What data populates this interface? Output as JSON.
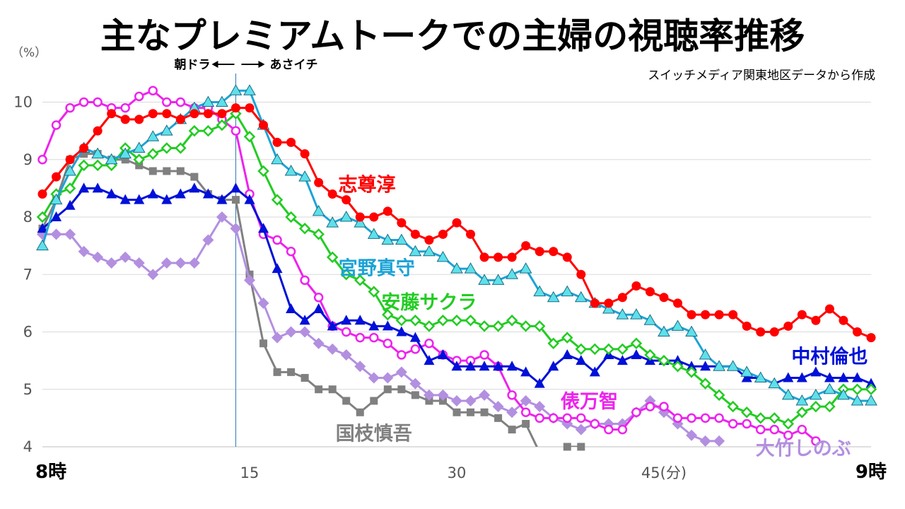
{
  "header": {
    "title": "主なプレミアムトークでの主婦の視聴率推移",
    "source": "スイッチメディア関東地区データから作成"
  },
  "chart_data": {
    "type": "line",
    "title": "主なプレミアムトークでの主婦の視聴率推移",
    "ylabel": "（%）",
    "xlabel": "",
    "xlim": [
      0,
      60
    ],
    "ylim": [
      4,
      10.4
    ],
    "yticks": [
      4,
      5,
      6,
      7,
      8,
      9,
      10
    ],
    "xticks": [
      {
        "x": 0,
        "label": "8時"
      },
      {
        "x": 15,
        "label": "15"
      },
      {
        "x": 30,
        "label": "30"
      },
      {
        "x": 45,
        "label": "45(分)"
      },
      {
        "x": 60,
        "label": "9時"
      }
    ],
    "marker": {
      "x": 14,
      "label_left": "朝ドラ",
      "label_right": "あさイチ",
      "color": "#2e75b6"
    },
    "grid": "horizontal",
    "series": [
      {
        "name": "志尊淳",
        "color": "#ff0000",
        "marker": "circle-filled",
        "label_pos": [
          23.5,
          8.45
        ],
        "values": [
          8.4,
          8.7,
          9.0,
          9.2,
          9.5,
          9.8,
          9.7,
          9.7,
          9.8,
          9.8,
          9.7,
          9.8,
          9.8,
          9.8,
          9.9,
          9.9,
          9.6,
          9.3,
          9.3,
          9.1,
          8.6,
          8.4,
          8.3,
          8.0,
          8.0,
          8.1,
          7.9,
          7.7,
          7.6,
          7.7,
          7.9,
          7.7,
          7.3,
          7.3,
          7.3,
          7.5,
          7.4,
          7.4,
          7.3,
          7.0,
          6.5,
          6.5,
          6.6,
          6.8,
          6.7,
          6.6,
          6.5,
          6.3,
          6.3,
          6.3,
          6.3,
          6.1,
          6.0,
          6.0,
          6.1,
          6.3,
          6.2,
          6.4,
          6.2,
          6.0,
          5.9
        ]
      },
      {
        "name": "宮野真守",
        "color": "#1ca3d6",
        "marker": "triangle",
        "label_pos": [
          24.2,
          7.0
        ],
        "values": [
          7.5,
          8.3,
          8.8,
          9.2,
          9.1,
          9.0,
          9.1,
          9.2,
          9.4,
          9.5,
          9.7,
          9.9,
          10.0,
          10.0,
          10.2,
          10.2,
          9.6,
          9.0,
          8.8,
          8.7,
          8.1,
          7.9,
          8.0,
          7.9,
          7.7,
          7.6,
          7.6,
          7.4,
          7.4,
          7.3,
          7.1,
          7.1,
          6.9,
          6.9,
          7.0,
          7.1,
          6.7,
          6.6,
          6.7,
          6.6,
          6.5,
          6.4,
          6.3,
          6.3,
          6.2,
          6.0,
          6.1,
          6.0,
          5.6,
          5.4,
          5.4,
          5.3,
          5.2,
          5.1,
          4.9,
          4.8,
          4.9,
          5.0,
          4.9,
          4.8,
          4.8
        ]
      },
      {
        "name": "安藤サクラ",
        "color": "#22cc22",
        "marker": "diamond-open",
        "label_pos": [
          28.0,
          6.4
        ],
        "values": [
          8.0,
          8.4,
          8.5,
          8.9,
          8.9,
          8.9,
          9.2,
          9.0,
          9.1,
          9.2,
          9.2,
          9.5,
          9.5,
          9.6,
          9.8,
          9.4,
          8.8,
          8.3,
          8.0,
          7.8,
          7.7,
          7.3,
          7.0,
          6.9,
          6.7,
          6.3,
          6.2,
          6.2,
          6.1,
          6.2,
          6.2,
          6.2,
          6.1,
          6.1,
          6.2,
          6.1,
          6.1,
          5.8,
          5.9,
          5.7,
          5.7,
          5.7,
          5.7,
          5.8,
          5.6,
          5.5,
          5.4,
          5.3,
          5.1,
          4.9,
          4.7,
          4.6,
          4.5,
          4.5,
          4.4,
          4.6,
          4.7,
          4.7,
          5.0,
          5.0,
          5.0
        ]
      },
      {
        "name": "中村倫也",
        "color": "#0010d8",
        "marker": "triangle-filled",
        "label_pos": [
          57.0,
          5.46
        ],
        "values": [
          7.8,
          8.0,
          8.2,
          8.5,
          8.5,
          8.4,
          8.3,
          8.3,
          8.4,
          8.3,
          8.4,
          8.5,
          8.4,
          8.3,
          8.5,
          8.3,
          7.8,
          7.1,
          6.4,
          6.2,
          6.4,
          6.1,
          6.2,
          6.2,
          6.1,
          6.1,
          6.0,
          5.9,
          5.5,
          5.6,
          5.4,
          5.4,
          5.4,
          5.4,
          5.4,
          5.3,
          5.1,
          5.4,
          5.6,
          5.5,
          5.3,
          5.6,
          5.5,
          5.6,
          5.5,
          5.5,
          5.5,
          5.4,
          5.4,
          5.4,
          5.4,
          5.2,
          5.2,
          5.1,
          5.2,
          5.2,
          5.3,
          5.2,
          5.2,
          5.2,
          5.1
        ]
      },
      {
        "name": "俵万智",
        "color": "#ee22ee",
        "marker": "circle-open",
        "label_pos": [
          39.6,
          4.68
        ],
        "values": [
          9.0,
          9.6,
          9.9,
          10.0,
          10.0,
          9.9,
          9.9,
          10.1,
          10.2,
          10.0,
          10.0,
          9.9,
          9.9,
          9.7,
          9.5,
          8.4,
          7.7,
          7.6,
          7.4,
          6.9,
          6.6,
          6.1,
          6.0,
          5.9,
          5.9,
          5.8,
          5.6,
          5.7,
          5.8,
          5.6,
          5.5,
          5.5,
          5.6,
          5.4,
          4.9,
          4.6,
          4.5,
          4.5,
          4.5,
          4.5,
          4.4,
          4.3,
          4.3,
          4.6,
          4.7,
          4.7,
          4.5,
          4.5,
          4.5,
          4.5,
          4.4,
          4.4,
          4.3,
          4.3,
          4.2,
          4.3,
          4.1
        ]
      },
      {
        "name": "大竹しのぶ",
        "color": "#b38fe0",
        "marker": "diamond-filled",
        "label_pos": [
          55.1,
          3.86
        ],
        "values": [
          7.7,
          7.7,
          7.7,
          7.4,
          7.3,
          7.2,
          7.3,
          7.2,
          7.0,
          7.2,
          7.2,
          7.2,
          7.6,
          8.0,
          7.8,
          6.9,
          6.5,
          5.9,
          6.0,
          6.0,
          5.8,
          5.7,
          5.6,
          5.4,
          5.2,
          5.2,
          5.3,
          5.1,
          4.9,
          4.9,
          4.8,
          4.8,
          4.9,
          4.7,
          4.6,
          4.8,
          4.7,
          4.5,
          4.4,
          4.3,
          4.4,
          4.4,
          4.4,
          4.6,
          4.8,
          4.6,
          4.4,
          4.2,
          4.1,
          4.1
        ]
      },
      {
        "name": "国枝慎吾",
        "color": "#808080",
        "marker": "square-filled",
        "label_pos": [
          24.0,
          4.12
        ],
        "values": [
          7.8,
          8.3,
          9.0,
          9.1,
          9.1,
          9.0,
          9.0,
          8.9,
          8.8,
          8.8,
          8.8,
          8.7,
          8.4,
          8.3,
          8.3,
          7.0,
          5.8,
          5.3,
          5.3,
          5.2,
          5.0,
          5.0,
          4.8,
          4.6,
          4.8,
          5.0,
          5.0,
          4.9,
          4.8,
          4.8,
          4.6,
          4.6,
          4.6,
          4.5,
          4.3,
          4.4,
          3.9,
          null,
          4.0,
          4.0
        ]
      }
    ]
  }
}
